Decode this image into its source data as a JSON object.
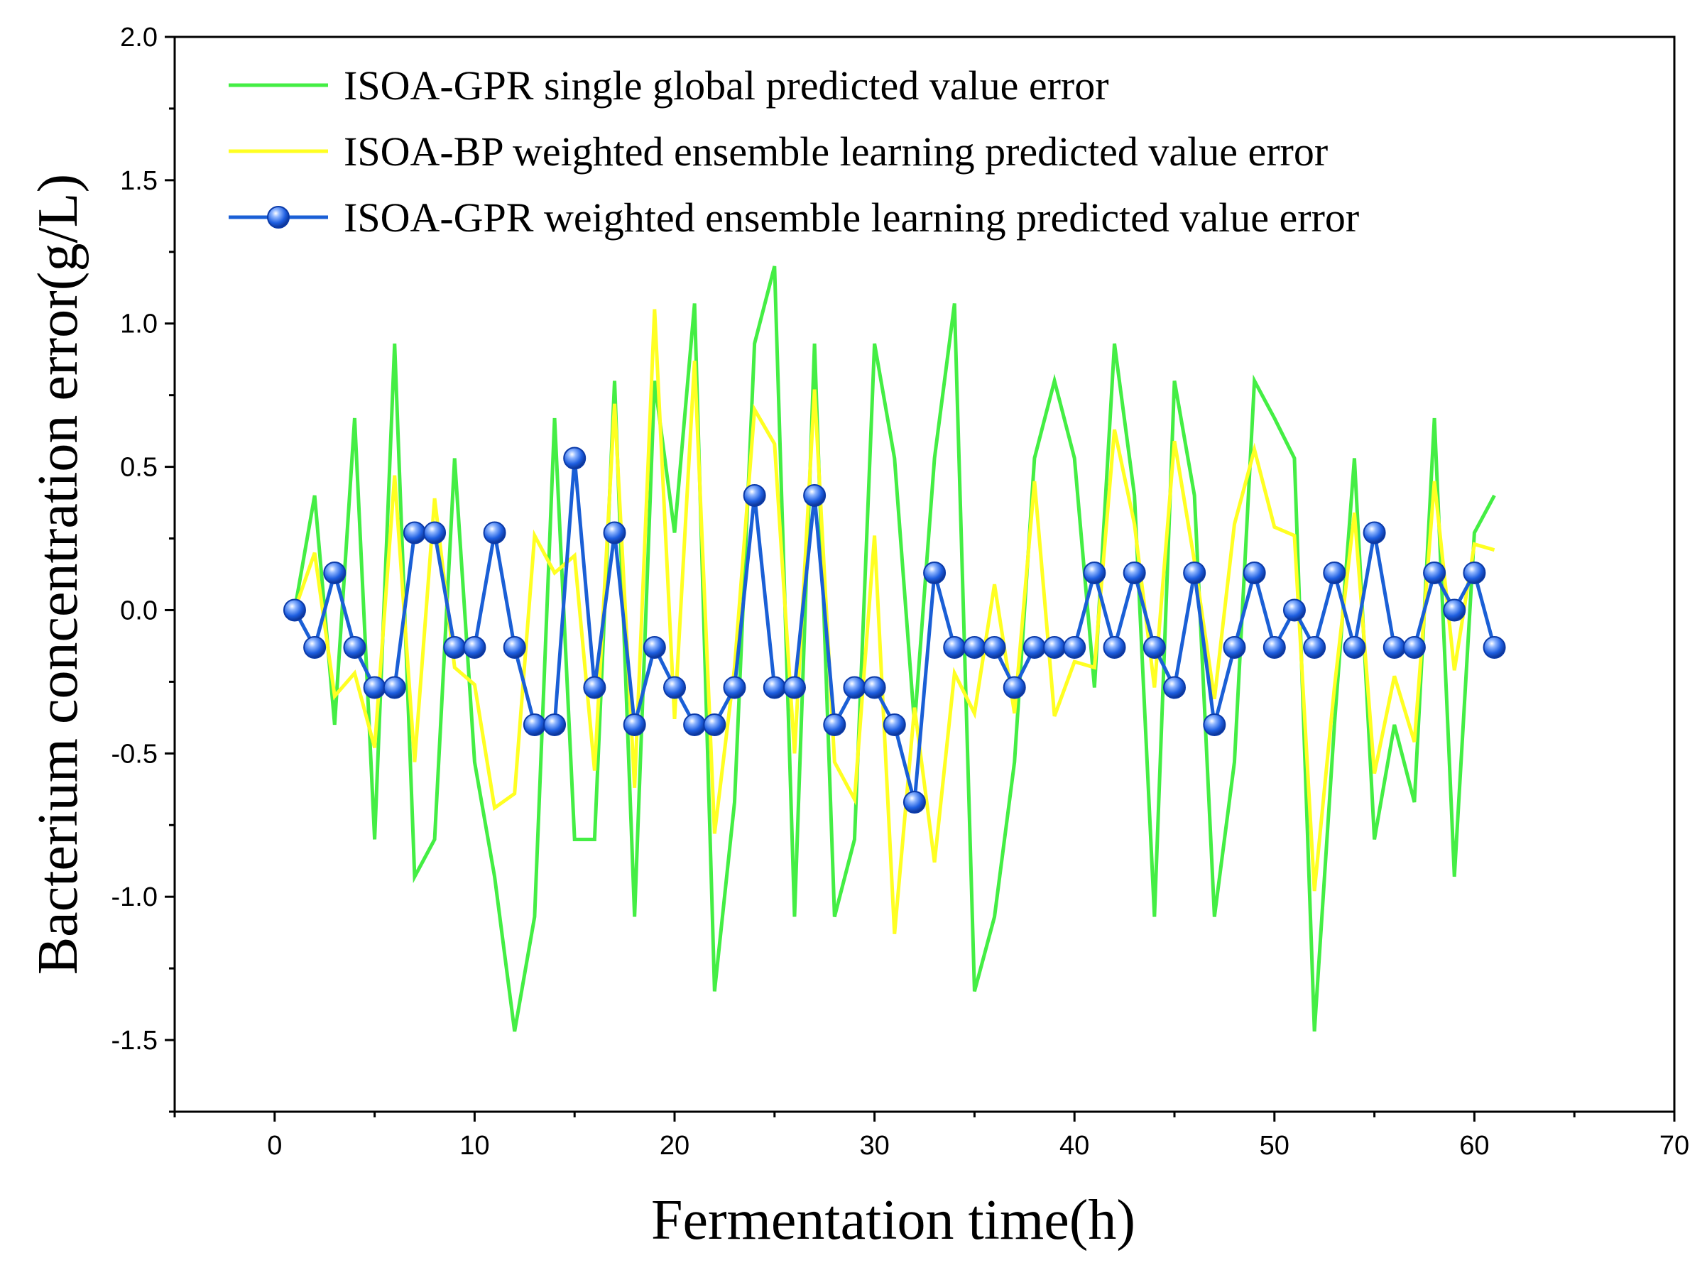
{
  "chart_data": {
    "type": "line",
    "title": "",
    "xlabel": "Fermentation time(h)",
    "ylabel": "Bacterium concentration error(g/L)",
    "xlim": [
      -5,
      70
    ],
    "ylim": [
      -1.75,
      2.0
    ],
    "x_ticks": [
      0,
      10,
      20,
      30,
      40,
      50,
      60,
      70
    ],
    "x_tick_labels": [
      "0",
      "10",
      "20",
      "30",
      "40",
      "50",
      "60",
      "70"
    ],
    "y_ticks": [
      -1.5,
      -1.0,
      -0.5,
      0.0,
      0.5,
      1.0,
      1.5,
      2.0
    ],
    "y_tick_labels": [
      "-1.5",
      "-1.0",
      "-0.5",
      "0.0",
      "0.5",
      "1.0",
      "1.5",
      "2.0"
    ],
    "grid": false,
    "legend_position": "top-left",
    "x": [
      1,
      2,
      3,
      4,
      5,
      6,
      7,
      8,
      9,
      10,
      11,
      12,
      13,
      14,
      15,
      16,
      17,
      18,
      19,
      20,
      21,
      22,
      23,
      24,
      25,
      26,
      27,
      28,
      29,
      30,
      31,
      32,
      33,
      34,
      35,
      36,
      37,
      38,
      39,
      40,
      41,
      42,
      43,
      44,
      45,
      46,
      47,
      48,
      49,
      50,
      51,
      52,
      53,
      54,
      55,
      56,
      57,
      58,
      59,
      60,
      61
    ],
    "series": [
      {
        "name": "ISOA-GPR single global predicted value error",
        "color": "#44ee44",
        "marker": "none",
        "values": [
          0.0,
          0.4,
          -0.4,
          0.67,
          -0.8,
          0.93,
          -0.93,
          -0.8,
          0.53,
          -0.53,
          -0.93,
          -1.47,
          -1.07,
          0.67,
          -0.8,
          -0.8,
          0.8,
          -1.07,
          0.8,
          0.27,
          1.07,
          -1.33,
          -0.67,
          0.93,
          1.2,
          -1.07,
          0.93,
          -1.07,
          -0.8,
          0.93,
          0.53,
          -0.4,
          0.53,
          1.07,
          -1.33,
          -1.07,
          -0.53,
          0.53,
          0.8,
          0.53,
          -0.27,
          0.93,
          0.4,
          -1.07,
          0.8,
          0.4,
          -1.07,
          -0.53,
          0.8,
          0.67,
          0.53,
          -1.47,
          -0.4,
          0.53,
          -0.8,
          -0.4,
          -0.67,
          0.67,
          -0.93,
          0.27,
          0.4
        ]
      },
      {
        "name": "ISOA-BP weighted ensemble learning predicted value error",
        "color": "#ffff22",
        "marker": "none",
        "values": [
          0.0,
          0.2,
          -0.3,
          -0.22,
          -0.48,
          0.47,
          -0.53,
          0.39,
          -0.2,
          -0.26,
          -0.69,
          -0.64,
          0.26,
          0.13,
          0.19,
          -0.56,
          0.72,
          -0.62,
          1.05,
          -0.38,
          0.87,
          -0.78,
          -0.2,
          0.7,
          0.58,
          -0.5,
          0.77,
          -0.53,
          -0.66,
          0.26,
          -1.13,
          -0.34,
          -0.88,
          -0.22,
          -0.36,
          0.09,
          -0.36,
          0.45,
          -0.37,
          -0.18,
          -0.2,
          0.63,
          0.3,
          -0.27,
          0.59,
          0.17,
          -0.31,
          0.3,
          0.56,
          0.29,
          0.26,
          -0.98,
          -0.27,
          0.34,
          -0.57,
          -0.23,
          -0.46,
          0.45,
          -0.21,
          0.23,
          0.21
        ]
      },
      {
        "name": "ISOA-GPR weighted ensemble learning predicted value error",
        "color": "#1a5fd6",
        "marker": "circle",
        "values": [
          0.0,
          -0.13,
          0.13,
          -0.13,
          -0.27,
          -0.27,
          0.27,
          0.27,
          -0.13,
          -0.13,
          0.27,
          -0.13,
          -0.4,
          -0.4,
          0.53,
          -0.27,
          0.27,
          -0.4,
          -0.13,
          -0.27,
          -0.4,
          -0.4,
          -0.27,
          0.4,
          -0.27,
          -0.27,
          0.4,
          -0.4,
          -0.27,
          -0.27,
          -0.4,
          -0.67,
          0.13,
          -0.13,
          -0.13,
          -0.13,
          -0.27,
          -0.13,
          -0.13,
          -0.13,
          0.13,
          -0.13,
          0.13,
          -0.13,
          -0.27,
          0.13,
          -0.4,
          -0.13,
          0.13,
          -0.13,
          0.0,
          -0.13,
          0.13,
          -0.13,
          0.27,
          -0.13,
          -0.13,
          0.13,
          0.0,
          0.13,
          -0.13
        ]
      }
    ]
  }
}
